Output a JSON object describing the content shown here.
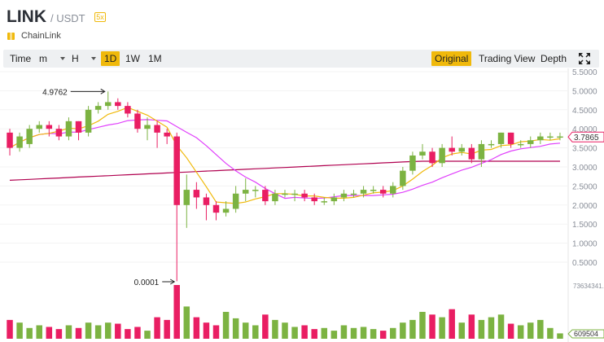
{
  "pair": {
    "base": "LINK",
    "quote": "/ USDT",
    "leverage": "5x",
    "name": "ChainLink"
  },
  "toolbar": {
    "time": "Time",
    "minute": "m",
    "hour": "H",
    "intervals": [
      "1D",
      "1W",
      "1M"
    ],
    "active_interval": "1D",
    "views": [
      "Original",
      "Trading View",
      "Depth"
    ],
    "active_view": "Original"
  },
  "icons": {
    "fullscreen": "fullscreen-icon",
    "coin": "coin-icon"
  },
  "colors": {
    "up": "#7cb342",
    "down": "#e91e63",
    "ma_fast": "#f0b90b",
    "ma_mid": "#e040fb",
    "ma_slow": "#b0004f",
    "active": "#f0b90b"
  },
  "chart_data": {
    "type": "candlestick",
    "y_ticks": [
      "5.5000",
      "5.0000",
      "4.5000",
      "4.0000",
      "3.5000",
      "3.0000",
      "2.5000",
      "2.0000",
      "1.5000",
      "1.0000",
      "0.5000"
    ],
    "ylim": [
      0,
      5.6
    ],
    "last_price": "3.7865",
    "annotations": {
      "high": "4.9762",
      "low": "0.0001"
    },
    "volume_ticks": {
      "top": "73634341.0",
      "bottom": "609504"
    },
    "candles": [
      [
        3.9,
        3.5,
        4.0,
        3.3
      ],
      [
        3.5,
        3.8,
        3.9,
        3.4
      ],
      [
        3.6,
        4.0,
        4.1,
        3.5
      ],
      [
        4.0,
        4.1,
        4.2,
        3.9
      ],
      [
        4.1,
        4.0,
        4.2,
        3.8
      ],
      [
        4.0,
        3.8,
        4.1,
        3.7
      ],
      [
        3.8,
        4.2,
        4.3,
        3.7
      ],
      [
        4.2,
        3.9,
        4.2,
        3.7
      ],
      [
        3.9,
        4.5,
        4.6,
        3.8
      ],
      [
        4.5,
        4.6,
        4.7,
        4.4
      ],
      [
        4.6,
        4.7,
        4.98,
        4.5
      ],
      [
        4.7,
        4.6,
        4.8,
        4.5
      ],
      [
        4.6,
        4.4,
        4.7,
        4.3
      ],
      [
        4.4,
        4.0,
        4.5,
        3.9
      ],
      [
        4.0,
        4.1,
        4.3,
        3.7
      ],
      [
        4.1,
        3.9,
        4.2,
        3.5
      ],
      [
        3.9,
        3.8,
        4.0,
        3.6
      ],
      [
        3.8,
        2.0,
        3.9,
        0.0001
      ],
      [
        2.0,
        2.4,
        2.8,
        1.4
      ],
      [
        2.4,
        2.2,
        2.6,
        1.9
      ],
      [
        2.2,
        2.0,
        2.3,
        1.6
      ],
      [
        2.0,
        1.8,
        2.1,
        1.6
      ],
      [
        1.8,
        1.9,
        2.1,
        1.7
      ],
      [
        1.9,
        2.3,
        2.5,
        1.8
      ],
      [
        2.3,
        2.4,
        2.7,
        2.1
      ],
      [
        2.4,
        2.4,
        2.5,
        2.2
      ],
      [
        2.4,
        2.1,
        2.5,
        2.0
      ],
      [
        2.1,
        2.3,
        2.4,
        2.0
      ],
      [
        2.3,
        2.3,
        2.4,
        2.2
      ],
      [
        2.3,
        2.3,
        2.4,
        2.1
      ],
      [
        2.3,
        2.2,
        2.4,
        2.1
      ],
      [
        2.2,
        2.1,
        2.3,
        2.0
      ],
      [
        2.1,
        2.1,
        2.2,
        2.0
      ],
      [
        2.1,
        2.2,
        2.3,
        2.0
      ],
      [
        2.2,
        2.3,
        2.4,
        2.1
      ],
      [
        2.3,
        2.3,
        2.4,
        2.2
      ],
      [
        2.3,
        2.4,
        2.5,
        2.2
      ],
      [
        2.4,
        2.4,
        2.5,
        2.3
      ],
      [
        2.4,
        2.3,
        2.5,
        2.2
      ],
      [
        2.3,
        2.5,
        2.6,
        2.2
      ],
      [
        2.5,
        2.9,
        3.0,
        2.4
      ],
      [
        2.9,
        3.3,
        3.4,
        2.8
      ],
      [
        3.3,
        3.4,
        3.6,
        3.2
      ],
      [
        3.4,
        3.1,
        3.5,
        3.0
      ],
      [
        3.1,
        3.5,
        3.6,
        3.0
      ],
      [
        3.5,
        3.4,
        3.8,
        3.3
      ],
      [
        3.4,
        3.5,
        3.6,
        3.3
      ],
      [
        3.5,
        3.2,
        3.6,
        3.1
      ],
      [
        3.2,
        3.6,
        3.7,
        3.0
      ],
      [
        3.6,
        3.6,
        3.7,
        3.5
      ],
      [
        3.6,
        3.9,
        3.9,
        3.5
      ],
      [
        3.9,
        3.6,
        3.9,
        3.5
      ],
      [
        3.6,
        3.6,
        3.7,
        3.5
      ],
      [
        3.6,
        3.7,
        3.8,
        3.5
      ],
      [
        3.7,
        3.8,
        3.9,
        3.6
      ],
      [
        3.8,
        3.8,
        3.9,
        3.7
      ],
      [
        3.8,
        3.8,
        3.9,
        3.7
      ]
    ],
    "volumes": [
      35,
      30,
      20,
      25,
      22,
      18,
      25,
      20,
      30,
      25,
      30,
      28,
      18,
      22,
      15,
      40,
      35,
      100,
      60,
      40,
      30,
      25,
      50,
      38,
      30,
      25,
      45,
      35,
      30,
      22,
      25,
      18,
      20,
      15,
      25,
      20,
      22,
      18,
      15,
      20,
      30,
      35,
      50,
      45,
      40,
      55,
      30,
      45,
      35,
      40,
      45,
      28,
      25,
      30,
      35,
      20,
      10
    ]
  }
}
